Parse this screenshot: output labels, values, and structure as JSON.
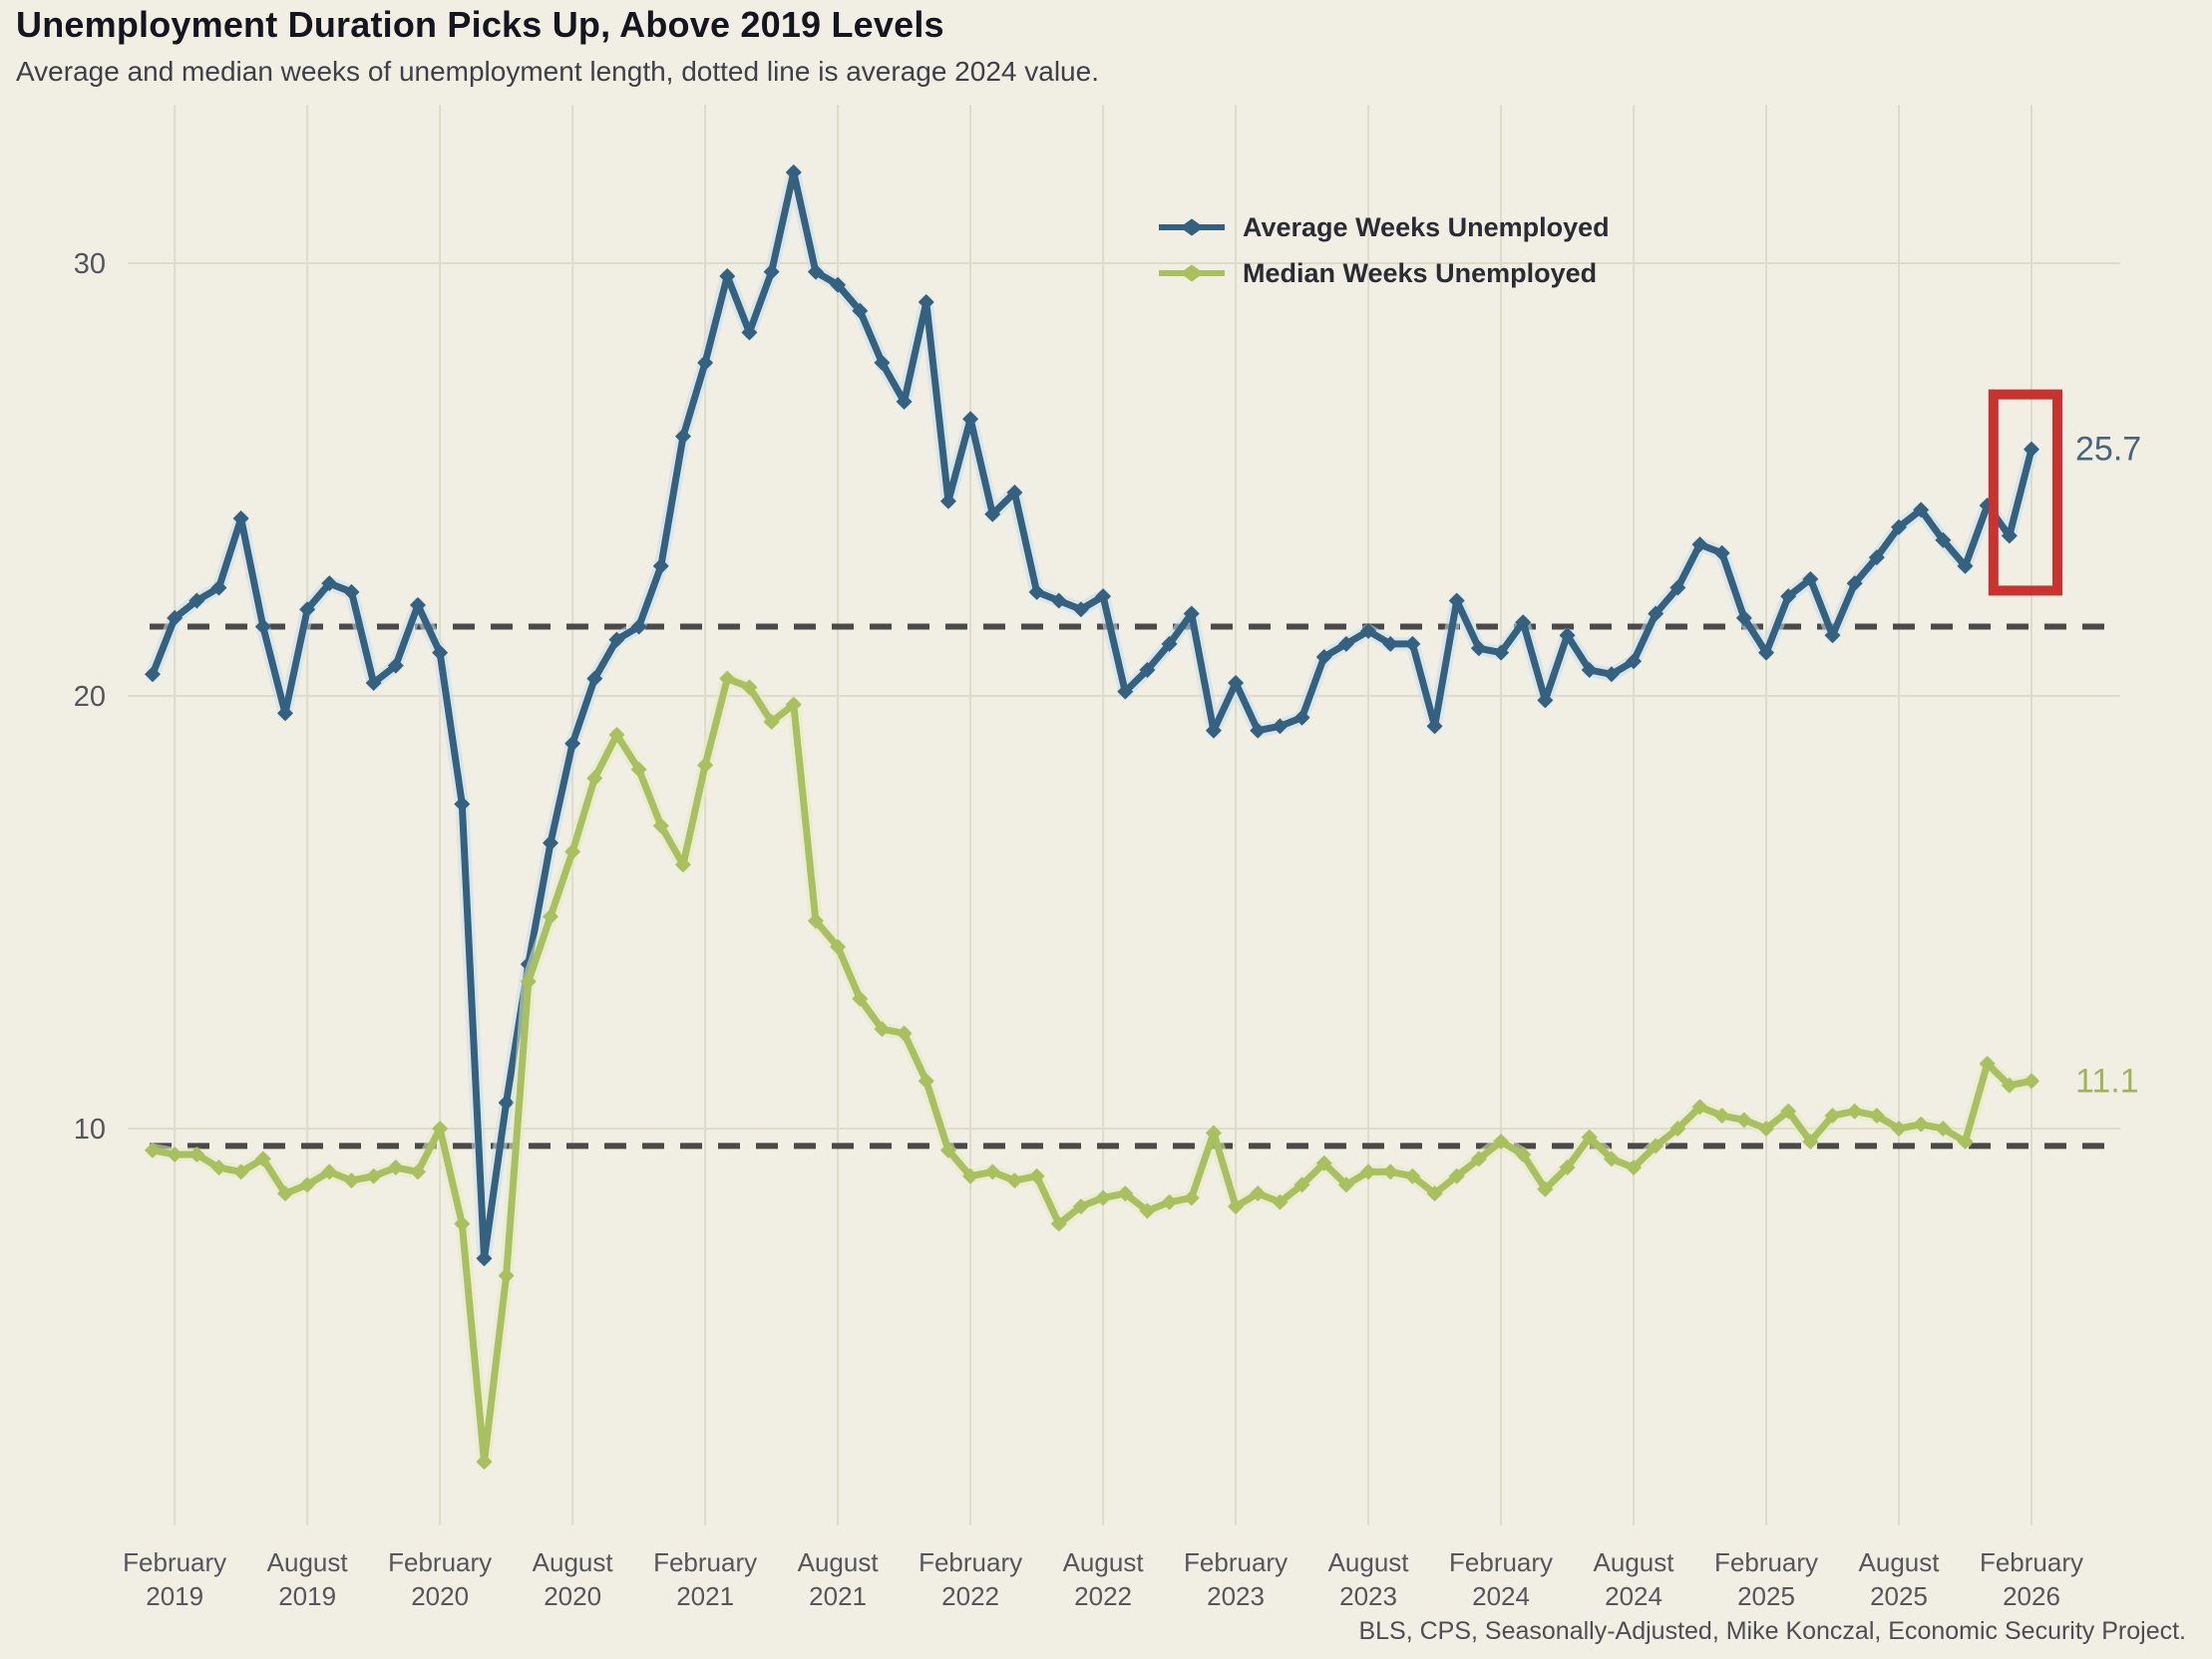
{
  "title": "Unemployment Duration Picks Up, Above 2019 Levels",
  "subtitle": "Average and median weeks of unemployment length, dotted line is average 2024 value.",
  "source_note": "BLS, CPS, Seasonally-Adjusted, Mike Konczal, Economic Security Project.",
  "colors": {
    "background": "#f1efe3",
    "grid": "#dedbcb",
    "average_line": "#33617f",
    "average_halo": "#c9dfec",
    "median_line": "#a9c05f",
    "median_halo": "#e3e9c8",
    "dashed_reference": "#4a4a4a",
    "highlight_box": "#c9322f",
    "average_end_label": "#47657c",
    "median_end_label": "#a0b457",
    "axis_text": "#55555c"
  },
  "legend": {
    "items": [
      {
        "label": "Average Weeks Unemployed",
        "series": "average"
      },
      {
        "label": "Median Weeks Unemployed",
        "series": "median"
      }
    ]
  },
  "chart_data": {
    "type": "line",
    "x_frequency": "monthly",
    "x_start_month": "January 2019",
    "x_end_month": "February 2026",
    "grid": true,
    "legend_position": "top-center",
    "y_ticks": [
      30,
      20,
      10
    ],
    "ylim": [
      0,
      33.5
    ],
    "x_tick_labels": [
      {
        "month": "February",
        "year": "2019",
        "index": 1
      },
      {
        "month": "August",
        "year": "2019",
        "index": 7
      },
      {
        "month": "February",
        "year": "2020",
        "index": 13
      },
      {
        "month": "August",
        "year": "2020",
        "index": 19
      },
      {
        "month": "February",
        "year": "2021",
        "index": 25
      },
      {
        "month": "August",
        "year": "2021",
        "index": 31
      },
      {
        "month": "February",
        "year": "2022",
        "index": 37
      },
      {
        "month": "August",
        "year": "2022",
        "index": 43
      },
      {
        "month": "February",
        "year": "2023",
        "index": 49
      },
      {
        "month": "August",
        "year": "2023",
        "index": 55
      },
      {
        "month": "February",
        "year": "2024",
        "index": 61
      },
      {
        "month": "August",
        "year": "2024",
        "index": 67
      },
      {
        "month": "February",
        "year": "2025",
        "index": 73
      },
      {
        "month": "August",
        "year": "2025",
        "index": 79
      },
      {
        "month": "February",
        "year": "2026",
        "index": 85
      }
    ],
    "series": [
      {
        "name": "Average Weeks Unemployed",
        "key": "average",
        "reference_dashed_line_2024_average": 21.6,
        "end_label": "25.7",
        "values": [
          20.5,
          21.8,
          22.2,
          22.5,
          24.1,
          21.6,
          19.6,
          22.0,
          22.6,
          22.4,
          20.3,
          20.7,
          22.1,
          21.0,
          17.5,
          7.0,
          10.6,
          13.8,
          16.6,
          18.9,
          20.4,
          21.3,
          21.6,
          23.0,
          26.0,
          27.7,
          29.7,
          28.4,
          29.8,
          32.1,
          29.8,
          29.5,
          28.9,
          27.7,
          26.8,
          29.1,
          24.5,
          26.4,
          24.2,
          24.7,
          22.4,
          22.2,
          22.0,
          22.3,
          20.1,
          20.6,
          21.2,
          21.9,
          19.2,
          20.3,
          19.2,
          19.3,
          19.5,
          20.9,
          21.2,
          21.5,
          21.2,
          21.2,
          19.3,
          22.2,
          21.1,
          21.0,
          21.7,
          19.9,
          21.4,
          20.6,
          20.5,
          20.8,
          21.9,
          22.5,
          23.5,
          23.3,
          21.8,
          21.0,
          22.3,
          22.7,
          21.4,
          22.6,
          23.2,
          23.9,
          24.3,
          23.6,
          23.0,
          24.4,
          23.7,
          25.7
        ]
      },
      {
        "name": "Median Weeks Unemployed",
        "key": "median",
        "reference_dashed_line_2024_average": 9.6,
        "end_label": "11.1",
        "values": [
          9.5,
          9.4,
          9.4,
          9.1,
          9.0,
          9.3,
          8.5,
          8.7,
          9.0,
          8.8,
          8.9,
          9.1,
          9.0,
          10.0,
          7.8,
          2.3,
          6.6,
          13.4,
          14.9,
          16.4,
          18.1,
          19.1,
          18.3,
          17.0,
          16.1,
          18.4,
          20.4,
          20.2,
          19.4,
          19.8,
          14.8,
          14.2,
          13.0,
          12.3,
          12.2,
          11.1,
          9.5,
          8.9,
          9.0,
          8.8,
          8.9,
          7.8,
          8.2,
          8.4,
          8.5,
          8.1,
          8.3,
          8.4,
          9.9,
          8.2,
          8.5,
          8.3,
          8.7,
          9.2,
          8.7,
          9.0,
          9.0,
          8.9,
          8.5,
          8.9,
          9.3,
          9.7,
          9.4,
          8.6,
          9.1,
          9.8,
          9.3,
          9.1,
          9.6,
          10.0,
          10.5,
          10.3,
          10.2,
          10.0,
          10.4,
          9.7,
          10.3,
          10.4,
          10.3,
          10.0,
          10.1,
          10.0,
          9.7,
          11.5,
          11.0,
          11.1
        ]
      }
    ],
    "annotations": {
      "highlight_box": {
        "description": "red box highlighting the last two months of the average series",
        "series": "average",
        "from_index": 84,
        "to_index": 85
      }
    }
  }
}
